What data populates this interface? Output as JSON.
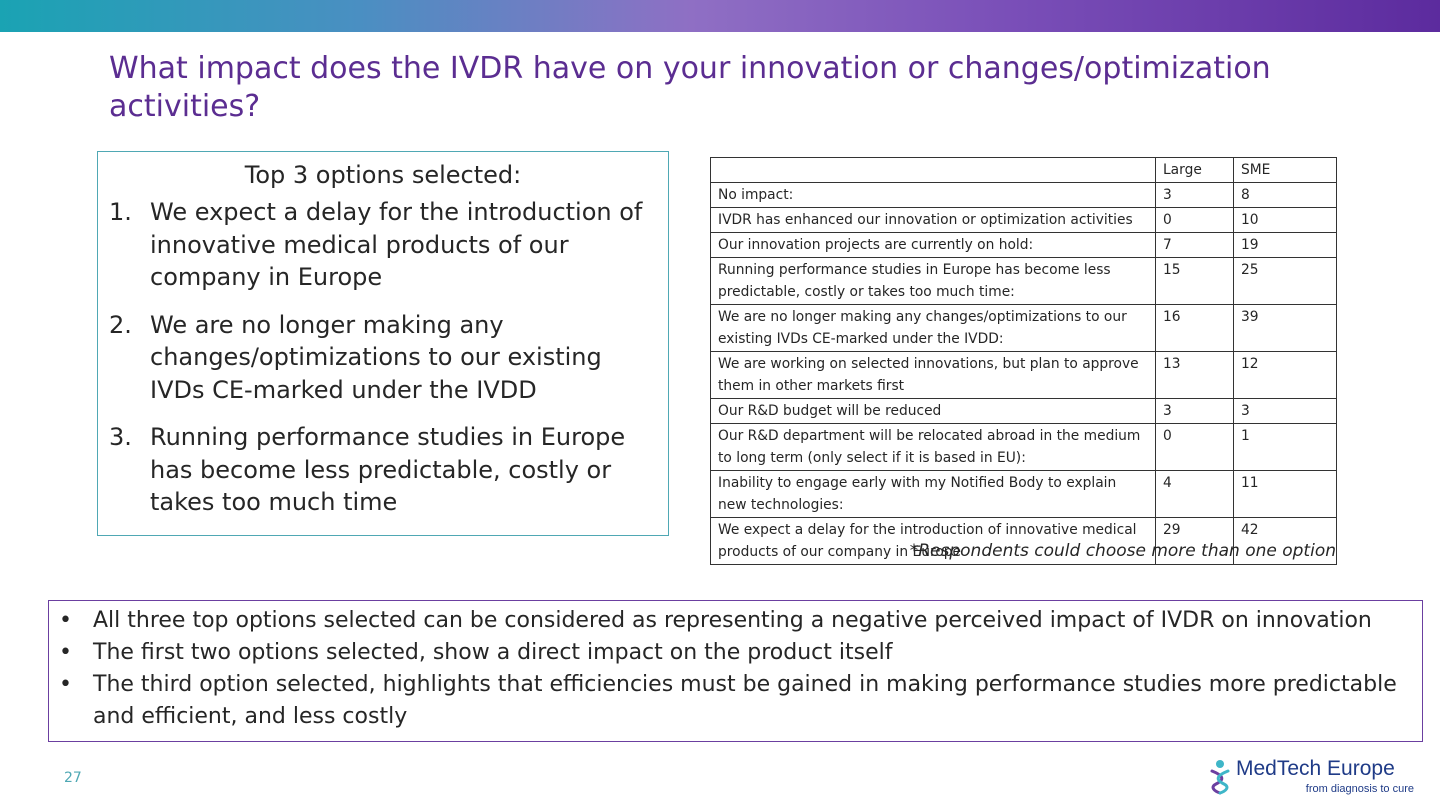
{
  "slide": {
    "title": "What impact does the IVDR have on your innovation or changes/optimization activities?",
    "page_number": "27"
  },
  "top_options": {
    "heading": "Top 3 options selected:",
    "items": [
      {
        "num": "1.",
        "text": "We expect a delay for the introduction of innovative medical products of our company in Europe"
      },
      {
        "num": "2.",
        "text": "We are no longer making any changes/optimizations to our existing IVDs CE-marked under the IVDD"
      },
      {
        "num": "3.",
        "text": "Running performance studies in Europe has become less predictable, costly or takes too much time"
      }
    ]
  },
  "table": {
    "headers": [
      "",
      "Large",
      "SME"
    ],
    "rows": [
      [
        "No impact:",
        "3",
        "8"
      ],
      [
        "IVDR has enhanced our innovation or optimization activities",
        "0",
        "10"
      ],
      [
        "Our innovation projects are currently on hold:",
        "7",
        "19"
      ],
      [
        "Running performance studies in Europe has become less predictable, costly or takes too much time:",
        "15",
        "25"
      ],
      [
        "We are no longer making any changes/optimizations to our existing IVDs CE-marked under the IVDD:",
        "16",
        "39"
      ],
      [
        "We are working on selected innovations, but plan to approve them in other markets first",
        "13",
        "12"
      ],
      [
        "Our R&D budget will be reduced",
        "3",
        "3"
      ],
      [
        "Our R&D department will be relocated abroad in the medium to long term (only select if it is based in EU):",
        "0",
        "1"
      ],
      [
        "Inability to engage early with my Notified Body to explain new technologies:",
        "4",
        "11"
      ],
      [
        "We expect a delay for the introduction of innovative medical products of our company in Europe",
        "29",
        "42"
      ]
    ],
    "footnote": "*Respondents could choose more than one option"
  },
  "conclusions": {
    "bullet_symbol": "•",
    "items": [
      "All three top options selected can be considered as representing a negative perceived impact of IVDR on innovation",
      "The first two options selected, show a direct impact on the product itself",
      "The third option selected, highlights that efficiencies must be gained in making performance studies more predictable and efficient, and less costly"
    ]
  },
  "logo": {
    "name": "MedTech Europe",
    "tagline": "from diagnosis to cure",
    "icon": "person-helix-icon"
  },
  "colors": {
    "title": "#5b2d91",
    "top_box_border": "#4fa8b4",
    "bottom_box_border": "#6b3fa0",
    "page_number": "#4fa8b4",
    "logo_text": "#1f3b87"
  }
}
